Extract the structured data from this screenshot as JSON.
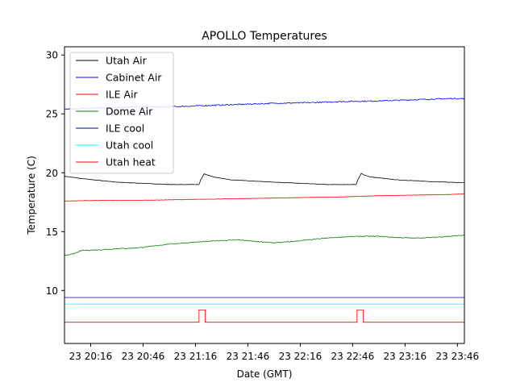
{
  "chart_data": {
    "type": "line",
    "title": "APOLLO Temperatures",
    "xlabel": "Date (GMT)",
    "ylabel": "Temperature (C)",
    "x_unit": "minutes since 20:01 GMT",
    "xlim": [
      0,
      229
    ],
    "ylim": [
      5.5,
      30.7
    ],
    "yticks": [
      10,
      15,
      20,
      25,
      30
    ],
    "xticks": [
      {
        "x": 15,
        "label": "23 20:16"
      },
      {
        "x": 45,
        "label": "23 20:46"
      },
      {
        "x": 75,
        "label": "23 21:16"
      },
      {
        "x": 105,
        "label": "23 21:46"
      },
      {
        "x": 135,
        "label": "23 22:16"
      },
      {
        "x": 165,
        "label": "23 22:46"
      },
      {
        "x": 195,
        "label": "23 23:16"
      },
      {
        "x": 225,
        "label": "23 23:46"
      }
    ],
    "legend_position": "top-left",
    "series": [
      {
        "name": "Utah Air",
        "color": "#000000",
        "x": [
          0,
          10,
          30,
          60,
          77,
          78,
          80,
          81,
          85,
          95,
          120,
          150,
          167,
          168,
          170,
          171,
          175,
          190,
          210,
          229
        ],
        "y": [
          19.7,
          19.5,
          19.2,
          19.0,
          19.0,
          19.4,
          19.9,
          19.85,
          19.65,
          19.4,
          19.2,
          19.0,
          19.0,
          19.4,
          19.95,
          19.85,
          19.65,
          19.4,
          19.25,
          19.15
        ]
      },
      {
        "name": "Cabinet Air",
        "color": "#0000ff",
        "x": [
          0,
          20,
          40,
          60,
          80,
          100,
          120,
          140,
          160,
          180,
          200,
          220,
          229
        ],
        "y": [
          25.4,
          25.5,
          25.6,
          25.6,
          25.7,
          25.8,
          25.9,
          25.95,
          26.05,
          26.1,
          26.2,
          26.3,
          26.3
        ]
      },
      {
        "name": "ILE Air",
        "color": "#ff0000",
        "x": [
          0,
          20,
          40,
          60,
          80,
          100,
          120,
          140,
          160,
          180,
          200,
          220,
          229
        ],
        "y": [
          17.6,
          17.65,
          17.65,
          17.7,
          17.75,
          17.8,
          17.85,
          17.9,
          17.95,
          18.05,
          18.1,
          18.15,
          18.2
        ]
      },
      {
        "name": "Dome Air",
        "color": "#008000",
        "x": [
          0,
          5,
          10,
          20,
          30,
          40,
          50,
          60,
          70,
          80,
          90,
          100,
          110,
          120,
          130,
          140,
          150,
          160,
          170,
          180,
          190,
          200,
          210,
          220,
          229
        ],
        "y": [
          13.0,
          13.1,
          13.4,
          13.45,
          13.55,
          13.6,
          13.75,
          13.95,
          14.05,
          14.15,
          14.25,
          14.3,
          14.15,
          14.05,
          14.15,
          14.3,
          14.45,
          14.55,
          14.6,
          14.6,
          14.5,
          14.45,
          14.5,
          14.6,
          14.7
        ]
      },
      {
        "name": "ILE cool",
        "color": "#00008b",
        "x": [
          0,
          229
        ],
        "y": [
          9.4,
          9.4
        ]
      },
      {
        "name": "Utah cool",
        "color": "#00ffff",
        "x": [
          0,
          229
        ],
        "y": [
          8.85,
          8.85
        ]
      },
      {
        "name": "Utah heat",
        "color": "#ff0000",
        "x": [
          0,
          77,
          77,
          80.5,
          80.5,
          167.5,
          167.5,
          171,
          171,
          229
        ],
        "y": [
          7.3,
          7.3,
          8.35,
          8.35,
          7.3,
          7.3,
          8.35,
          8.35,
          7.3,
          7.3
        ]
      }
    ]
  }
}
